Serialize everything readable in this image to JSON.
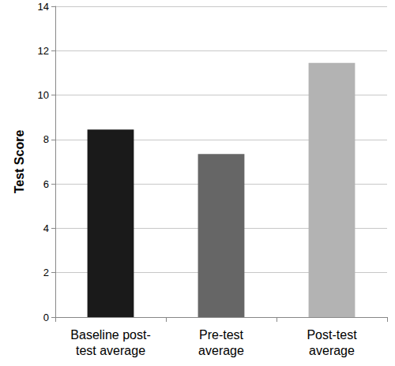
{
  "chart_data": {
    "type": "bar",
    "y_label": "Test Score",
    "categories": [
      "Baseline post-\ntest average",
      "Pre-test\naverage",
      "Post-test\naverage"
    ],
    "values": [
      8.45,
      7.35,
      11.45
    ],
    "colors": [
      "#1a1a1a",
      "#666666",
      "#b3b3b3"
    ],
    "ylim": [
      0,
      14
    ],
    "yticks": [
      0,
      2,
      4,
      6,
      8,
      10,
      12,
      14
    ],
    "grid": true
  }
}
